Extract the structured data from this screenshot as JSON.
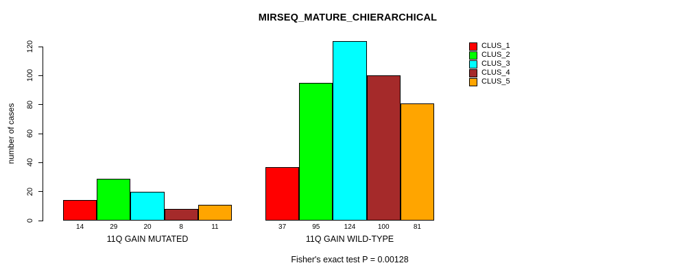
{
  "chart_data": {
    "type": "bar",
    "title": "MIRSEQ_MATURE_CHIERARCHICAL",
    "ylabel": "number of cases",
    "footer": "Fisher's exact test P = 0.00128",
    "ylim": [
      0,
      120
    ],
    "yticks": [
      0,
      20,
      40,
      60,
      80,
      100,
      120
    ],
    "grid": false,
    "legend_position": "right",
    "series": [
      {
        "name": "CLUS_1",
        "color": "#FF0000"
      },
      {
        "name": "CLUS_2",
        "color": "#00FF00"
      },
      {
        "name": "CLUS_3",
        "color": "#00FFFF"
      },
      {
        "name": "CLUS_4",
        "color": "#A52A2A"
      },
      {
        "name": "CLUS_5",
        "color": "#FFA500"
      }
    ],
    "groups": [
      {
        "label": "11Q GAIN MUTATED",
        "values": [
          14,
          29,
          20,
          8,
          11
        ]
      },
      {
        "label": "11Q GAIN WILD-TYPE",
        "values": [
          37,
          95,
          124,
          100,
          81
        ]
      }
    ]
  }
}
